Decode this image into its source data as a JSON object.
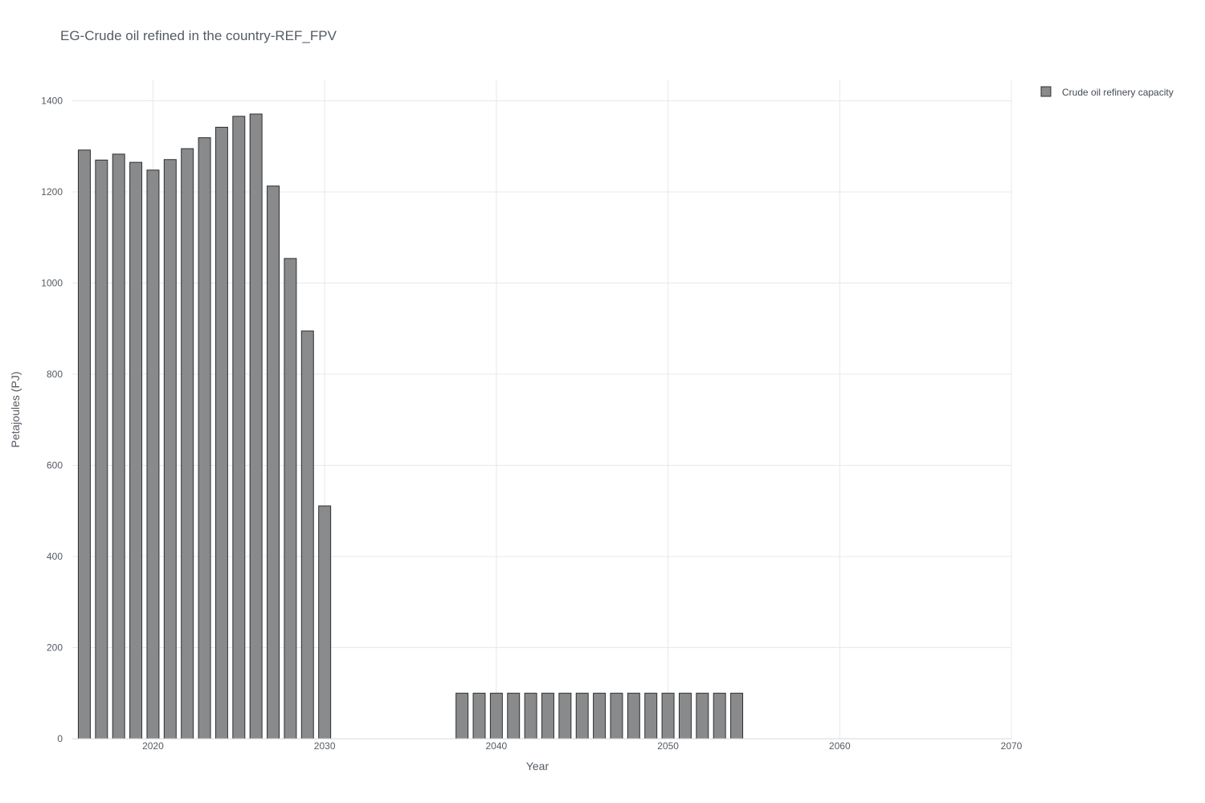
{
  "chart_data": {
    "type": "bar",
    "title": "EG-Crude oil refined in the country-REF_FPV",
    "xlabel": "Year",
    "ylabel": "Petajoules (PJ)",
    "xlim": [
      2015.3,
      2070
    ],
    "ylim": [
      0,
      1445
    ],
    "xticks": [
      2020,
      2030,
      2040,
      2050,
      2060,
      2070
    ],
    "yticks": [
      0,
      200,
      400,
      600,
      800,
      1000,
      1200,
      1400
    ],
    "grid": true,
    "legend_position": "top-right",
    "series": [
      {
        "name": "Crude oil refinery capacity",
        "color": "#898a8c",
        "x": [
          2016,
          2017,
          2018,
          2019,
          2020,
          2021,
          2022,
          2023,
          2024,
          2025,
          2026,
          2027,
          2028,
          2029,
          2030,
          2038,
          2039,
          2040,
          2041,
          2042,
          2043,
          2044,
          2045,
          2046,
          2047,
          2048,
          2049,
          2050,
          2051,
          2052,
          2053,
          2054
        ],
        "values": [
          1292,
          1270,
          1283,
          1265,
          1248,
          1271,
          1295,
          1319,
          1342,
          1366,
          1371,
          1213,
          1054,
          895,
          511,
          100,
          100,
          100,
          100,
          100,
          100,
          100,
          100,
          100,
          100,
          100,
          100,
          100,
          100,
          100,
          100,
          100
        ]
      }
    ]
  }
}
